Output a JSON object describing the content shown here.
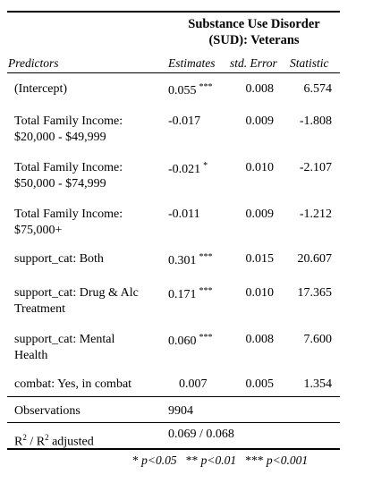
{
  "title_line1": "Substance Use Disorder",
  "title_line2": "(SUD): Veterans",
  "headers": {
    "predictors": "Predictors",
    "estimates": "Estimates",
    "std_error": "std. Error",
    "statistic": "Statistic"
  },
  "rows": [
    {
      "pred_line1": "(Intercept)",
      "pred_line2": "",
      "estimate": "0.055",
      "stars": "***",
      "se": "0.008",
      "stat": "6.574"
    },
    {
      "pred_line1": "Total Family Income:",
      "pred_line2": "$20,000 - $49,999",
      "estimate": "-0.017",
      "stars": "",
      "se": "0.009",
      "stat": "-1.808"
    },
    {
      "pred_line1": "Total Family Income:",
      "pred_line2": "$50,000 - $74,999",
      "estimate": "-0.021",
      "stars": "*",
      "se": "0.010",
      "stat": "-2.107"
    },
    {
      "pred_line1": "Total Family Income:",
      "pred_line2": "$75,000+",
      "estimate": "-0.011",
      "stars": "",
      "se": "0.009",
      "stat": "-1.212"
    },
    {
      "pred_line1": "support_cat: Both",
      "pred_line2": "",
      "estimate": "0.301",
      "stars": "***",
      "se": "0.015",
      "stat": "20.607"
    },
    {
      "pred_line1": "support_cat: Drug & Alc",
      "pred_line2": "Treatment",
      "estimate": "0.171",
      "stars": "***",
      "se": "0.010",
      "stat": "17.365"
    },
    {
      "pred_line1": "support_cat: Mental",
      "pred_line2": "Health",
      "estimate": "0.060",
      "stars": "***",
      "se": "0.008",
      "stat": "7.600"
    },
    {
      "pred_line1": "combat: Yes, in combat",
      "pred_line2": "",
      "estimate": "0.007",
      "stars": "",
      "se": "0.005",
      "stat": "1.354"
    }
  ],
  "observations": {
    "label": "Observations",
    "value": "9904"
  },
  "r2": {
    "label_r": "R",
    "sup1": "2",
    "slash": " / R",
    "sup2": "2",
    "label_adj": " adjusted",
    "value": "0.069 / 0.068"
  },
  "footnote": {
    "s1": "*",
    "t1": "p<0.05",
    "s2": "**",
    "t2": "p<0.01",
    "s3": "***",
    "t3": "p<0.001"
  }
}
